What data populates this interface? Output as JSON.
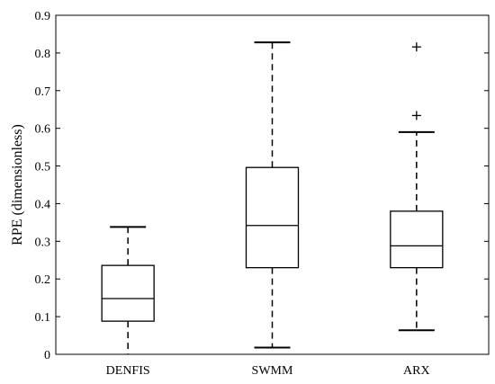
{
  "chart_data": {
    "type": "boxplot",
    "title": "",
    "xlabel": "",
    "ylabel": "RPE (dimensionless)",
    "ylim": [
      0,
      0.9
    ],
    "yticks": [
      "0",
      "0.1",
      "0.2",
      "0.3",
      "0.4",
      "0.5",
      "0.6",
      "0.7",
      "0.8",
      "0.9"
    ],
    "grid": false,
    "categories": [
      "DENFIS",
      "SWMM",
      "ARX"
    ],
    "boxes": [
      {
        "category": "DENFIS",
        "whisker_low": 0.0,
        "q1": 0.088,
        "median": 0.148,
        "q3": 0.236,
        "whisker_high": 0.338,
        "outliers": []
      },
      {
        "category": "SWMM",
        "whisker_low": 0.018,
        "q1": 0.23,
        "median": 0.342,
        "q3": 0.496,
        "whisker_high": 0.828,
        "outliers": []
      },
      {
        "category": "ARX",
        "whisker_low": 0.064,
        "q1": 0.23,
        "median": 0.288,
        "q3": 0.38,
        "whisker_high": 0.59,
        "outliers": [
          0.634,
          0.816
        ]
      }
    ]
  }
}
